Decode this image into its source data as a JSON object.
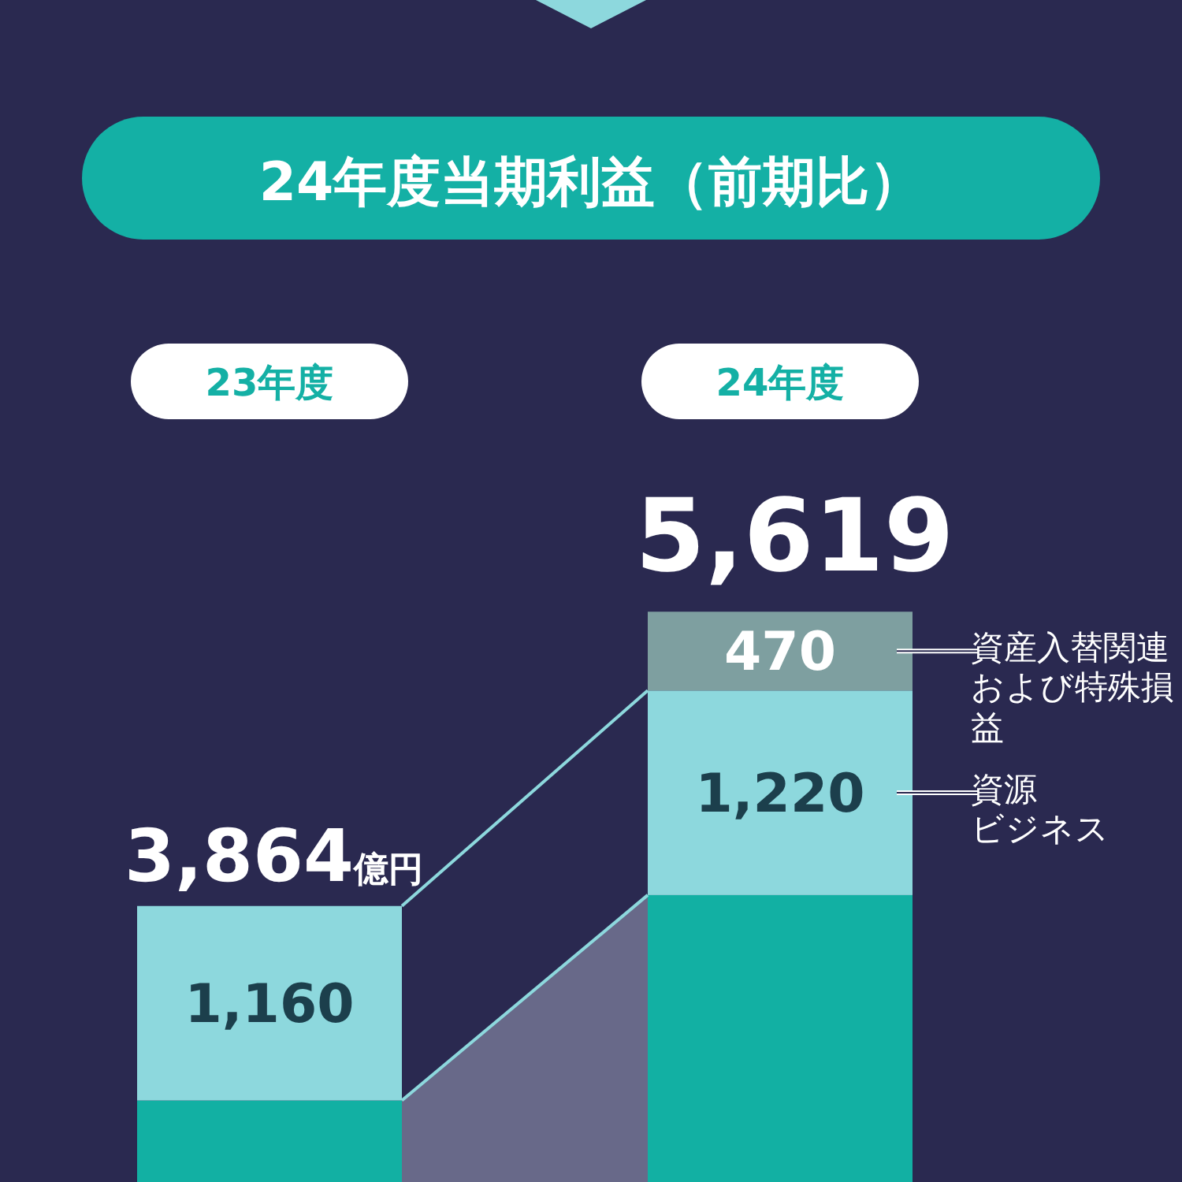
{
  "chart_data": {
    "type": "bar",
    "title": "24年度当期利益（前期比）",
    "stacked": true,
    "categories": [
      "23年度",
      "24年度"
    ],
    "series": [
      {
        "color": "#12b0a3",
        "values": [
          2704,
          3929
        ]
      },
      {
        "name": "資源ビジネス",
        "color": "#8dd8dd",
        "values": [
          1160,
          1220
        ],
        "value_labels": [
          "1,160",
          "1,220"
        ]
      },
      {
        "name": "資産入替関連および特殊損益",
        "color": "#7e9fa0",
        "values": [
          null,
          470
        ],
        "value_labels": [
          null,
          "470"
        ]
      }
    ],
    "totals": [
      "3,864億円",
      "5,619"
    ],
    "legend": "right"
  }
}
